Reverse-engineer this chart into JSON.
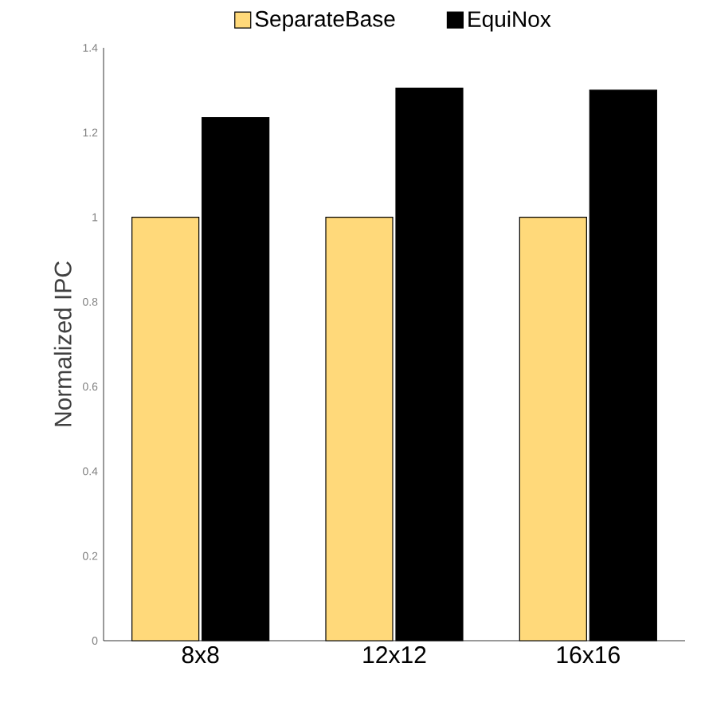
{
  "chart_data": {
    "type": "bar",
    "ylabel": "Normalized IPC",
    "categories": [
      "8x8",
      "12x12",
      "16x16"
    ],
    "series": [
      {
        "name": "SeparateBase",
        "color": "#ffd97a",
        "values": [
          1,
          1,
          1
        ]
      },
      {
        "name": "EquiNox",
        "color": "#000000",
        "values": [
          1.235,
          1.305,
          1.3
        ]
      }
    ],
    "ylim": [
      0,
      1.4
    ],
    "yticks": [
      0,
      0.2,
      0.4,
      0.6,
      0.8,
      1,
      1.2,
      1.4
    ],
    "grid": false,
    "legend": "top"
  }
}
